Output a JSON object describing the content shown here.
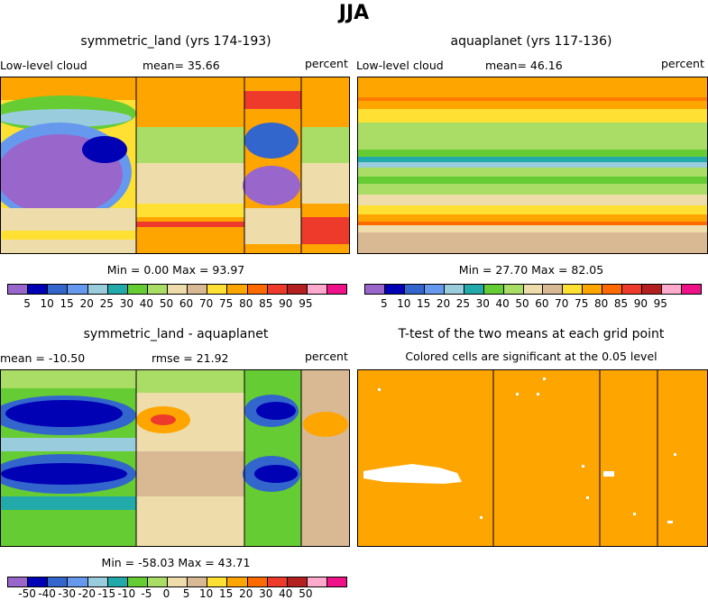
{
  "title": "JJA",
  "panels": {
    "p1": {
      "title": "symmetric_land (yrs 174-193)",
      "left": "Low-level cloud",
      "center": "mean=  35.66",
      "right": "percent",
      "minmax": "Min =   0.00 Max =  93.97"
    },
    "p2": {
      "title": "aquaplanet (yrs 117-136)",
      "left": "Low-level cloud",
      "center": "mean=  46.16",
      "right": "percent",
      "minmax": "Min =  27.70 Max =  82.05"
    },
    "p3": {
      "title": "symmetric_land - aquaplanet",
      "left": "mean = -10.50",
      "center": "rmse =  21.92",
      "right": "percent",
      "minmax": "Min = -58.03 Max =  43.71"
    },
    "p4": {
      "title": "T-test of the two means at each grid point",
      "subtitle": "Colored cells are significant at the 0.05 level"
    }
  },
  "colorbar_abs": {
    "labels": [
      "5",
      "10",
      "15",
      "20",
      "25",
      "30",
      "40",
      "50",
      "60",
      "70",
      "75",
      "80",
      "85",
      "90",
      "95"
    ],
    "colors": [
      "#9966cc",
      "#0000b4",
      "#3366cc",
      "#6699ee",
      "#99ccdd",
      "#22aaaa",
      "#66cc33",
      "#aadd66",
      "#eeddaa",
      "#d9b894",
      "#ffe033",
      "#ffa500",
      "#ff6a00",
      "#ee3a2a",
      "#b42020",
      "#ffaacc",
      "#ee1188"
    ]
  },
  "colorbar_diff": {
    "labels": [
      "-50",
      "-40",
      "-30",
      "-20",
      "-15",
      "-10",
      "-5",
      "0",
      "5",
      "10",
      "15",
      "20",
      "30",
      "40",
      "50"
    ],
    "colors": [
      "#9966cc",
      "#0000b4",
      "#3366cc",
      "#6699ee",
      "#99ccdd",
      "#22aaaa",
      "#66cc33",
      "#aadd66",
      "#eeddaa",
      "#d9b894",
      "#ffe033",
      "#ffa500",
      "#ff6a00",
      "#ee3a2a",
      "#b42020",
      "#ffaacc",
      "#ee1188"
    ]
  },
  "chart_data": [
    {
      "type": "heatmap",
      "title": "symmetric_land (yrs 174-193)",
      "variable": "Low-level cloud",
      "units": "percent",
      "mean": 35.66,
      "min": 0.0,
      "max": 93.97
    },
    {
      "type": "heatmap",
      "title": "aquaplanet (yrs 117-136)",
      "variable": "Low-level cloud",
      "units": "percent",
      "mean": 46.16,
      "min": 27.7,
      "max": 82.05
    },
    {
      "type": "heatmap",
      "title": "symmetric_land - aquaplanet",
      "units": "percent",
      "mean": -10.5,
      "rmse": 21.92,
      "min": -58.03,
      "max": 43.71
    },
    {
      "type": "heatmap",
      "title": "T-test of the two means at each grid point",
      "subtitle": "Colored cells are significant at the 0.05 level",
      "significant_color": "#ffa500"
    }
  ]
}
